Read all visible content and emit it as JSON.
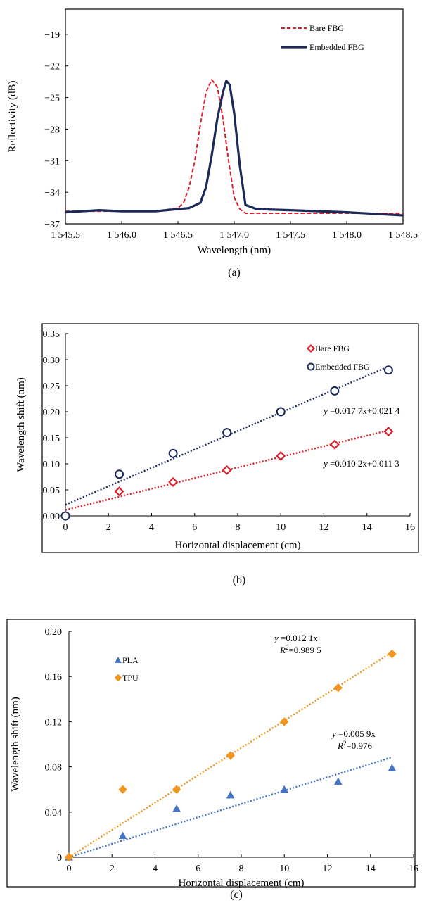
{
  "chart_data": [
    {
      "type": "line",
      "panel_label": "(a)",
      "xlabel": "Wavelength (nm)",
      "ylabel": "Reflectivity (dB)",
      "xlim": [
        1545.5,
        1548.5
      ],
      "ylim": [
        -37,
        -16.6
      ],
      "x_ticks": [
        1545.5,
        1546.0,
        1546.5,
        1547.0,
        1547.5,
        1548.0,
        1548.5
      ],
      "x_tick_labels": [
        "1 545.5",
        "1 546.0",
        "1 546.5",
        "1 547.0",
        "1 547.5",
        "1 548.0",
        "1 548.5"
      ],
      "y_ticks": [
        -19,
        -22,
        -25,
        -28,
        -31,
        -34,
        -37
      ],
      "y_tick_labels": [
        "−19",
        "−22",
        "−25",
        "−28",
        "−31",
        "−34",
        "−37"
      ],
      "legend_position": "top-right",
      "grid": false,
      "series": [
        {
          "name": "Bare FBG",
          "color": "#d9202b",
          "style": "dashed",
          "x": [
            1545.5,
            1546.0,
            1546.3,
            1546.5,
            1546.55,
            1546.6,
            1546.65,
            1546.7,
            1546.75,
            1546.8,
            1546.85,
            1546.9,
            1546.95,
            1547.0,
            1547.05,
            1547.1,
            1547.3,
            1547.6,
            1548.0,
            1548.3,
            1548.5
          ],
          "y": [
            -35.8,
            -35.8,
            -35.8,
            -35.5,
            -35.0,
            -33.5,
            -31.0,
            -27.5,
            -24.5,
            -23.3,
            -24.0,
            -27.0,
            -31.0,
            -34.5,
            -35.6,
            -36.0,
            -36.0,
            -36.0,
            -36.0,
            -36.0,
            -36.0
          ]
        },
        {
          "name": "Embedded FBG",
          "color": "#1c2a59",
          "style": "solid",
          "x": [
            1545.5,
            1545.8,
            1546.0,
            1546.3,
            1546.6,
            1546.7,
            1546.75,
            1546.8,
            1546.85,
            1546.9,
            1546.93,
            1546.96,
            1547.0,
            1547.05,
            1547.1,
            1547.2,
            1547.5,
            1548.0,
            1548.5
          ],
          "y": [
            -35.9,
            -35.7,
            -35.8,
            -35.8,
            -35.5,
            -35.0,
            -33.5,
            -30.5,
            -27.0,
            -24.5,
            -23.4,
            -23.8,
            -26.5,
            -31.5,
            -35.2,
            -35.6,
            -35.7,
            -35.9,
            -36.2
          ]
        }
      ]
    },
    {
      "type": "scatter",
      "panel_label": "(b)",
      "xlabel": "Horizontal displacement (cm)",
      "ylabel": "Wavelength shift (nm)",
      "xlim": [
        0,
        16
      ],
      "ylim": [
        0,
        0.35
      ],
      "x_ticks": [
        0,
        2,
        4,
        6,
        8,
        10,
        12,
        14,
        16
      ],
      "x_tick_labels": [
        "0",
        "2",
        "4",
        "6",
        "8",
        "10",
        "12",
        "14",
        "16"
      ],
      "y_ticks": [
        0,
        0.05,
        0.1,
        0.15,
        0.2,
        0.25,
        0.3,
        0.35
      ],
      "y_tick_labels": [
        "0.00",
        "0.05",
        "0.10",
        "0.15",
        "0.20",
        "0.25",
        "0.30",
        "0.35"
      ],
      "legend_position": "top-right",
      "grid": false,
      "series": [
        {
          "name": "Bare FBG",
          "color": "#d9202b",
          "marker": "diamond",
          "x": [
            0,
            2.5,
            5,
            7.5,
            10,
            12.5,
            15
          ],
          "y": [
            0,
            0.047,
            0.065,
            0.088,
            0.115,
            0.137,
            0.162
          ],
          "fit": {
            "slope": 0.0102,
            "intercept": 0.0113,
            "label_prefix": "y",
            "label_body": "=0.010 2x+0.011 3"
          }
        },
        {
          "name": "Embedded FBG",
          "color": "#1c2a59",
          "marker": "circle",
          "x": [
            0,
            2.5,
            5,
            7.5,
            10,
            12.5,
            15
          ],
          "y": [
            0,
            0.08,
            0.12,
            0.16,
            0.2,
            0.24,
            0.28
          ],
          "fit": {
            "slope": 0.0177,
            "intercept": 0.0214,
            "label_prefix": "y",
            "label_body": "=0.017 7x+0.021 4"
          }
        }
      ]
    },
    {
      "type": "scatter",
      "panel_label": "(c)",
      "xlabel": "Horizontal displacement (cm)",
      "ylabel": "Wavelength shift (nm)",
      "xlim": [
        0,
        16
      ],
      "ylim": [
        0,
        0.2
      ],
      "x_ticks": [
        0,
        2,
        4,
        6,
        8,
        10,
        12,
        14,
        16
      ],
      "x_tick_labels": [
        "0",
        "2",
        "4",
        "6",
        "8",
        "10",
        "12",
        "14",
        "16"
      ],
      "y_ticks": [
        0,
        0.04,
        0.08,
        0.12,
        0.16,
        0.2
      ],
      "y_tick_labels": [
        "0",
        "0.04",
        "0.08",
        "0.12",
        "0.16",
        "0.20"
      ],
      "legend_position": "top-left",
      "grid": false,
      "series": [
        {
          "name": "PLA",
          "color": "#4472c4",
          "marker": "triangle",
          "x": [
            0,
            2.5,
            5,
            7.5,
            10,
            12.5,
            15
          ],
          "y": [
            0,
            0.019,
            0.043,
            0.055,
            0.06,
            0.067,
            0.079
          ],
          "fit": {
            "slope": 0.0059,
            "intercept": 0,
            "label_prefix": "y",
            "label_body": "=0.005 9x",
            "r2_label": "=0.976"
          }
        },
        {
          "name": "TPU",
          "color": "#f0951d",
          "marker": "diamond",
          "x": [
            0,
            2.5,
            5,
            7.5,
            10,
            12.5,
            15
          ],
          "y": [
            0,
            0.06,
            0.06,
            0.09,
            0.12,
            0.15,
            0.18
          ],
          "fit": {
            "slope": 0.0121,
            "intercept": 0,
            "label_prefix": "y",
            "label_body": "=0.012 1x",
            "r2_label": "=0.989 5"
          }
        }
      ]
    }
  ]
}
